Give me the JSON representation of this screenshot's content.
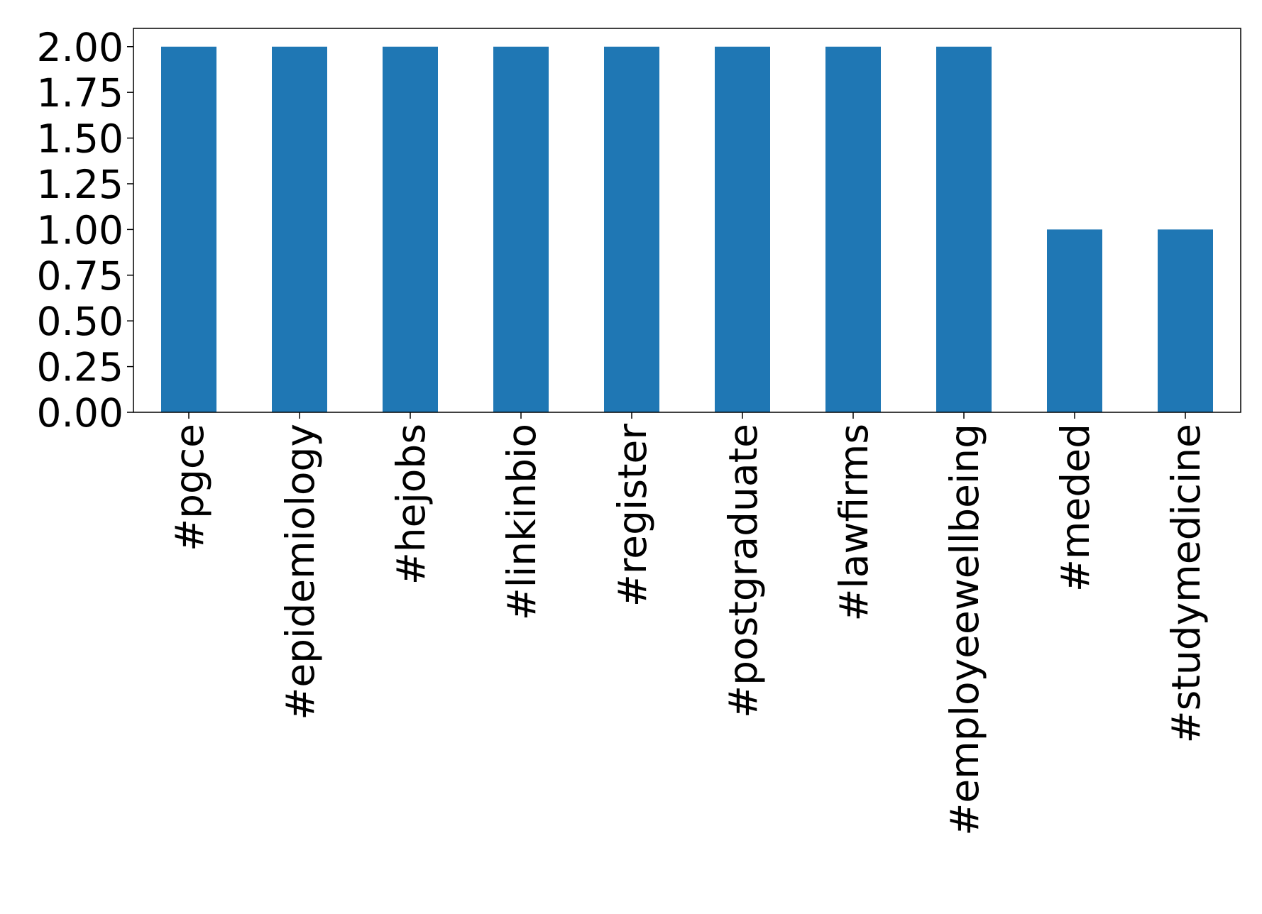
{
  "chart_data": {
    "type": "bar",
    "categories": [
      "#pgce",
      "#epidemiology",
      "#hejobs",
      "#linkinbio",
      "#register",
      "#postgraduate",
      "#lawfirms",
      "#employeewellbeing",
      "#meded",
      "#studymedicine"
    ],
    "values": [
      2,
      2,
      2,
      2,
      2,
      2,
      2,
      2,
      1,
      1
    ],
    "color": "#1f77b4",
    "ylim": [
      0,
      2.1
    ],
    "yticks": [
      {
        "value": 0,
        "label": "0.00"
      },
      {
        "value": 0.25,
        "label": "0.25"
      },
      {
        "value": 0.5,
        "label": "0.50"
      },
      {
        "value": 0.75,
        "label": "0.75"
      },
      {
        "value": 1,
        "label": "1.00"
      },
      {
        "value": 1.25,
        "label": "1.25"
      },
      {
        "value": 1.5,
        "label": "1.50"
      },
      {
        "value": 1.75,
        "label": "1.75"
      },
      {
        "value": 2,
        "label": "2.00"
      }
    ],
    "grid": false
  }
}
